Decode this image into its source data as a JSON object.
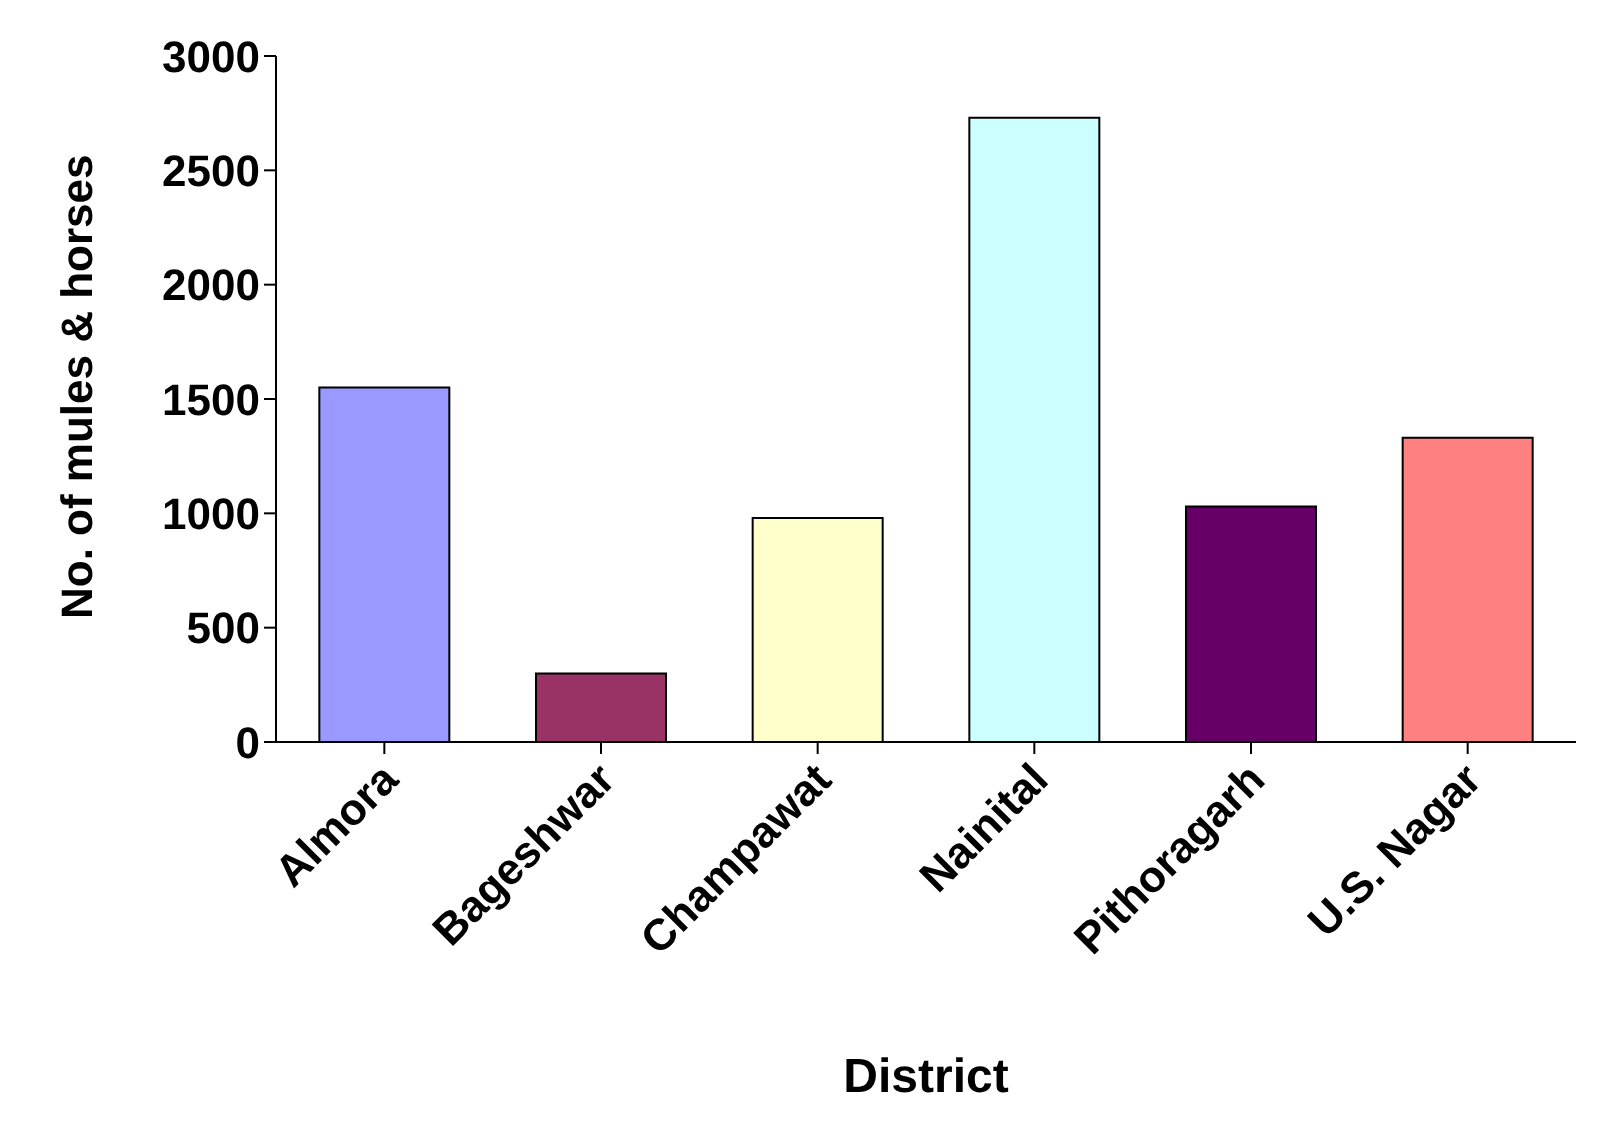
{
  "chart_data": {
    "type": "bar",
    "xlabel": "District",
    "ylabel": "No. of mules & horses",
    "categories": [
      "Almora",
      "Bageshwar",
      "Champawat",
      "Nainital",
      "Pithoragarh",
      "U.S. Nagar"
    ],
    "values": [
      1550,
      300,
      980,
      2730,
      1030,
      1330
    ],
    "colors": [
      "#9999ff",
      "#993366",
      "#ffffcc",
      "#ccffff",
      "#660066",
      "#ff8080"
    ],
    "ylim": [
      0,
      3000
    ],
    "yticks": [
      0,
      500,
      1000,
      1500,
      2000,
      2500,
      3000
    ],
    "grid": false
  }
}
